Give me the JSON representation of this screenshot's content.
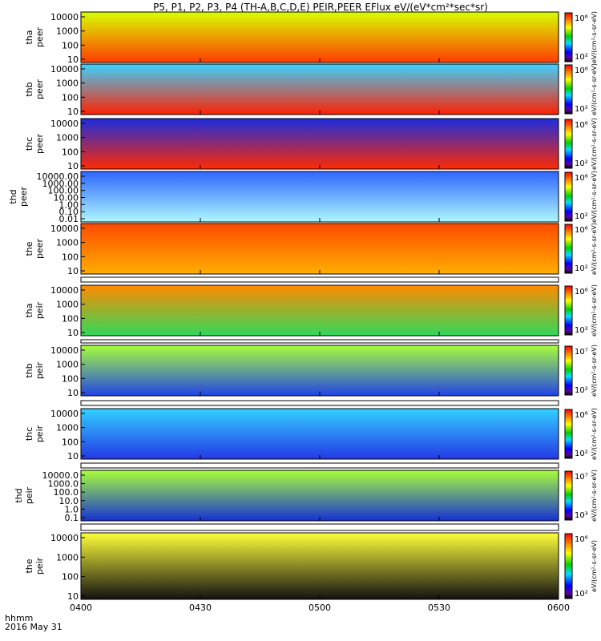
{
  "title": "P5, P1, P2, P3, P4 (TH-A,B,C,D,E) PEIR,PEER EFlux eV/(eV*cm²*sec*sr)",
  "time_label": "hhmm",
  "date_label": "2016 May 31",
  "chart_data": {
    "type": "heatmap",
    "x_ticks": [
      "0400",
      "0430",
      "0500",
      "0530",
      "0600"
    ],
    "x_range": [
      "04:00",
      "06:00"
    ],
    "panels": [
      {
        "name": "tha peer",
        "ylabel": [
          "tha",
          "peer"
        ],
        "yticks": [
          "10000",
          "1000",
          "100",
          "10"
        ],
        "color_range": [
          "10²",
          "10⁶"
        ],
        "colorbar_label": "eV/(cm²-s-sr-eV)"
      },
      {
        "name": "thb peer",
        "ylabel": [
          "thb",
          "peer"
        ],
        "yticks": [
          "10000",
          "1000",
          "100",
          "10"
        ],
        "color_range": [
          "10²",
          "10⁶"
        ],
        "colorbar_label": "eV/(cm²-s-sr-eV)"
      },
      {
        "name": "thc peer",
        "ylabel": [
          "thc",
          "peer"
        ],
        "yticks": [
          "10000",
          "1000",
          "100",
          "10"
        ],
        "color_range": [
          "10²",
          "10⁶"
        ],
        "colorbar_label": "eV/(cm²-s-sr-eV)"
      },
      {
        "name": "thd peer",
        "ylabel": [
          "thd",
          "peer"
        ],
        "yticks": [
          "10000.00",
          "1000.00",
          "100.00",
          "10.00",
          "1.00",
          "0.10",
          "0.01"
        ],
        "color_range": [
          "10²",
          "10⁶"
        ],
        "colorbar_label": "eV/(cm²-s-sr-eV)"
      },
      {
        "name": "the peer",
        "ylabel": [
          "the",
          "peer"
        ],
        "yticks": [
          "10000",
          "1000",
          "100",
          "10"
        ],
        "color_range": [
          "10²",
          "10⁶"
        ],
        "colorbar_label": "eV/(cm²-s-sr-eV)"
      },
      {
        "name": "tha peir",
        "ylabel": [
          "tha",
          "peir"
        ],
        "yticks": [
          "10000",
          "1000",
          "100",
          "10"
        ],
        "color_range": [
          "10²",
          "10⁶"
        ],
        "colorbar_label": "eV/(cm²-s-sr-eV)"
      },
      {
        "name": "thb peir",
        "ylabel": [
          "thb",
          "peir"
        ],
        "yticks": [
          "10000",
          "1000",
          "100",
          "10"
        ],
        "color_range": [
          "10²",
          "10⁷"
        ],
        "colorbar_label": "eV/(cm²-s-sr-eV)"
      },
      {
        "name": "thc peir",
        "ylabel": [
          "thc",
          "peir"
        ],
        "yticks": [
          "10000",
          "1000",
          "100",
          "10"
        ],
        "color_range": [
          "10²",
          "10⁶"
        ],
        "colorbar_label": "eV/(cm²-s-sr-eV)"
      },
      {
        "name": "thd peir",
        "ylabel": [
          "thd",
          "peir"
        ],
        "yticks": [
          "10000.0",
          "1000.0",
          "100.0",
          "10.0",
          "1.0",
          "0.1"
        ],
        "color_range": [
          "10³",
          "10⁷"
        ],
        "colorbar_label": "eV/(cm²-s-sr-eV)"
      },
      {
        "name": "the peir",
        "ylabel": [
          "the",
          "peir"
        ],
        "yticks": [
          "10000",
          "1000",
          "100",
          "10"
        ],
        "color_range": [
          "10²",
          "10⁶"
        ],
        "colorbar_label": "eV/(cm²-s-sr-eV)"
      }
    ]
  }
}
